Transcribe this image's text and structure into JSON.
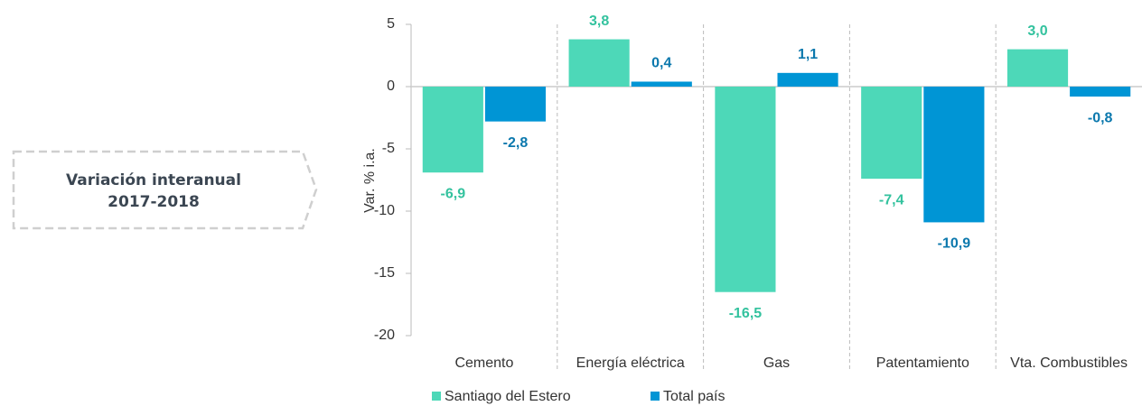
{
  "side_label": [
    "Variación interanual",
    "2017-2018"
  ],
  "chart_data": {
    "type": "bar",
    "y_label": "Var. % i.a.",
    "categories": [
      "Cemento",
      "Energía eléctrica",
      "Gas",
      "Patentamiento",
      "Vta. Combustibles"
    ],
    "series": [
      {
        "name": "Santiago del Estero",
        "color": "#4dd8b8",
        "label_color": "#33c29e",
        "values": [
          -6.9,
          3.8,
          -16.5,
          -7.4,
          3.0
        ],
        "value_labels": [
          "-6,9",
          "3,8",
          "-16,5",
          "-7,4",
          "3,0"
        ]
      },
      {
        "name": "Total país",
        "color": "#0095d5",
        "label_color": "#0b78ad",
        "values": [
          -2.8,
          0.4,
          1.1,
          -10.9,
          -0.8
        ],
        "value_labels": [
          "-2,8",
          "0,4",
          "1,1",
          "-10,9",
          "-0,8"
        ]
      }
    ],
    "ylim": [
      -20,
      5
    ],
    "yticks": [
      5,
      0,
      -5,
      -10,
      -15,
      -20
    ]
  }
}
